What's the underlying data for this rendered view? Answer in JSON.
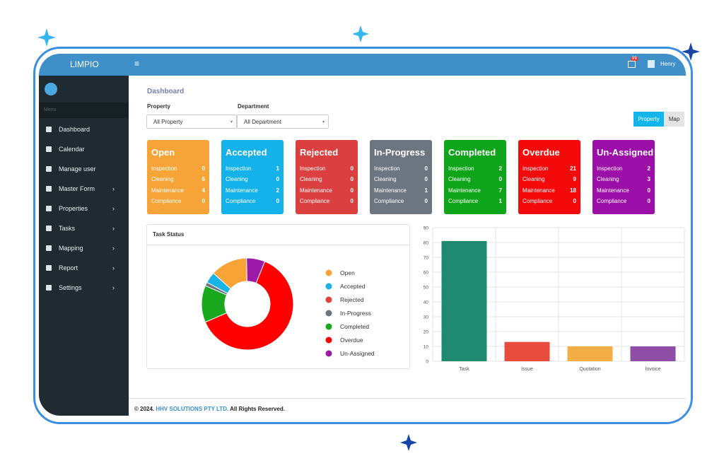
{
  "header": {
    "brand": "LIMPIO",
    "notification_count": "99",
    "user": "Henry"
  },
  "sidebar": {
    "menu_label": "Menu",
    "items": [
      "Dashboard",
      "Calendar",
      "Manage user",
      "Master Form",
      "Properties",
      "Tasks",
      "Mapping",
      "Report",
      "Settings"
    ]
  },
  "page_title": "Dashboard",
  "filters": [
    {
      "label": "Property",
      "value": "All Property"
    },
    {
      "label": "Department",
      "value": "All Department"
    }
  ],
  "view_buttons": [
    "Property",
    "Map"
  ],
  "status_cards": {
    "row_labels": [
      "Inspection",
      "Cleaning",
      "Maintenance",
      "Compliance"
    ],
    "cards": [
      {
        "title": "Open",
        "color": "#f6a437",
        "values": [
          0,
          6,
          4,
          0
        ]
      },
      {
        "title": "Accepted",
        "color": "#15b1ea",
        "values": [
          1,
          0,
          2,
          0
        ]
      },
      {
        "title": "Rejected",
        "color": "#dc3f3f",
        "values": [
          0,
          0,
          0,
          0
        ]
      },
      {
        "title": "In-Progress",
        "color": "#6d7680",
        "values": [
          0,
          0,
          1,
          0
        ]
      },
      {
        "title": "Completed",
        "color": "#0ea51a",
        "values": [
          2,
          0,
          7,
          1
        ]
      },
      {
        "title": "Overdue",
        "color": "#f40a0a",
        "values": [
          21,
          9,
          18,
          0
        ]
      },
      {
        "title": "Un-Assigned",
        "color": "#9b0ea8",
        "values": [
          2,
          3,
          0,
          0
        ]
      }
    ]
  },
  "chart_data": [
    {
      "type": "donut",
      "title": "Task Status",
      "categories": [
        "Open",
        "Accepted",
        "Rejected",
        "In-Progress",
        "Completed",
        "Overdue",
        "Un-Assigned"
      ],
      "values": [
        10,
        3,
        0,
        1,
        10,
        48,
        5
      ],
      "colors": [
        "#f7a335",
        "#1ab3e6",
        "#e0413e",
        "#6c7580",
        "#19a81e",
        "#ff0000",
        "#9c1aa8"
      ]
    },
    {
      "type": "bar",
      "categories": [
        "Task",
        "Issue",
        "Quotation",
        "Invoice"
      ],
      "values": [
        81,
        13,
        10,
        10
      ],
      "colors": [
        "#1f8a70",
        "#e74c3c",
        "#f3ae45",
        "#8e4ea6"
      ],
      "ylim": [
        0,
        90
      ],
      "yticks": [
        0,
        10,
        20,
        30,
        40,
        50,
        60,
        70,
        80,
        90
      ],
      "grid": true
    }
  ],
  "footer": {
    "prefix": "© 2024.",
    "company": "HHV SOLUTIONS PTY LTD.",
    "suffix": "All Rights Reserved."
  }
}
